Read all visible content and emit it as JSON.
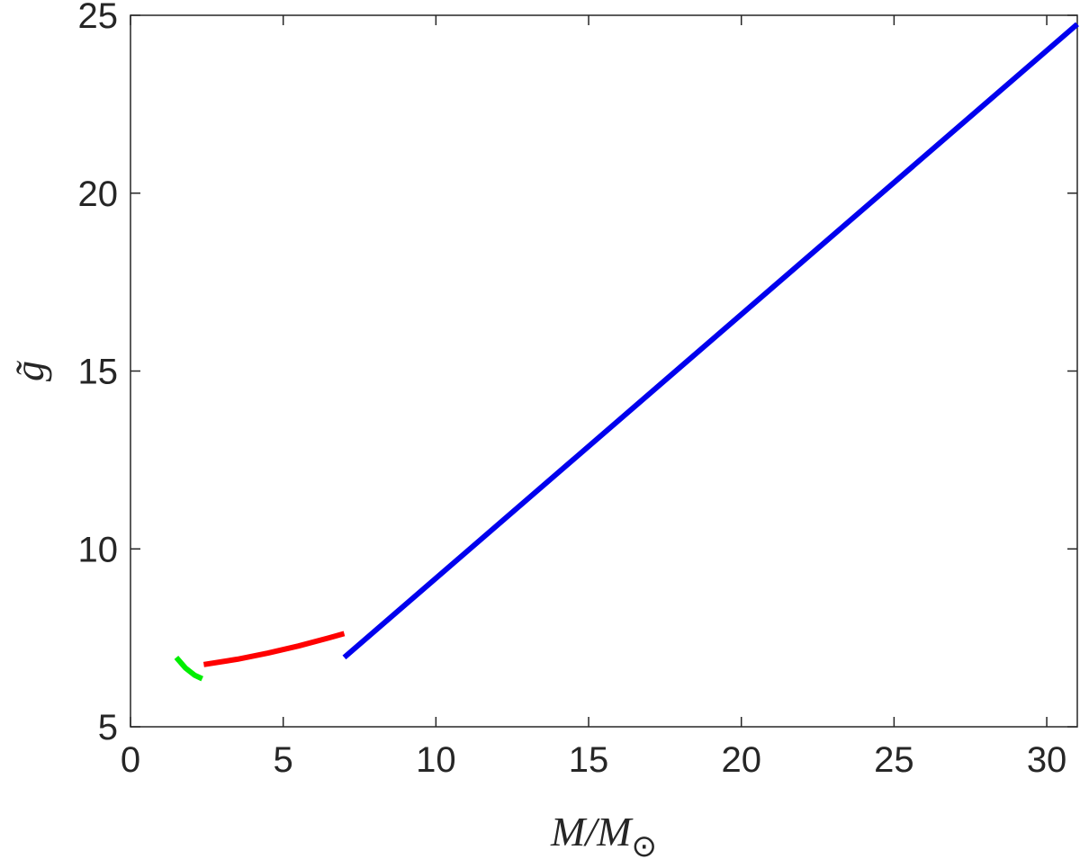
{
  "chart_data": {
    "type": "line",
    "xlabel": "M/M",
    "xlabel_subscript": "⊙",
    "ylabel": "g̃",
    "xlim": [
      0,
      31
    ],
    "ylim": [
      5,
      25
    ],
    "xticks": [
      0,
      5,
      10,
      15,
      20,
      25,
      30
    ],
    "yticks": [
      5,
      10,
      15,
      20,
      25
    ],
    "grid": false,
    "box": true,
    "series": [
      {
        "color": "#00ee00",
        "x": [
          1.5,
          1.8,
          2.1,
          2.35
        ],
        "y": [
          6.95,
          6.65,
          6.45,
          6.35
        ]
      },
      {
        "color": "#ff0000",
        "x": [
          2.4,
          3.5,
          4.5,
          5.5,
          6.5,
          7.0
        ],
        "y": [
          6.75,
          6.9,
          7.07,
          7.27,
          7.5,
          7.62
        ]
      },
      {
        "color": "#0000ee",
        "x": [
          7.0,
          31.0
        ],
        "y": [
          6.95,
          24.75
        ]
      }
    ]
  }
}
